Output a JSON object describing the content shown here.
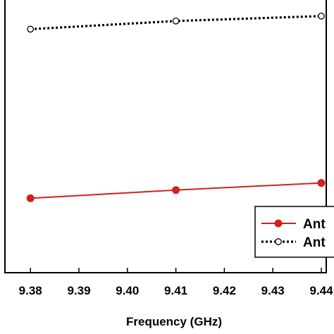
{
  "chart_data": {
    "type": "line",
    "xlabel": "Frequency (GHz)",
    "ylabel": "",
    "title": "",
    "x_ticks": [
      "9.38",
      "9.39",
      "9.40",
      "9.41",
      "9.42",
      "9.43",
      "9.44"
    ],
    "x_tick_values": [
      9.38,
      9.39,
      9.4,
      9.41,
      9.42,
      9.43,
      9.44
    ],
    "xlim": [
      9.3743,
      9.44
    ],
    "ylim": [
      0,
      1
    ],
    "grid": false,
    "legend_position": "bottom-right",
    "series": [
      {
        "name": "Ant",
        "color": "#d42020",
        "style": "solid",
        "marker": "filled-circle",
        "x": [
          9.38,
          9.41,
          9.44
        ],
        "y": [
          0.273,
          0.303,
          0.329
        ]
      },
      {
        "name": "Ant",
        "color": "#000000",
        "style": "dotted",
        "marker": "open-circle",
        "x": [
          9.38,
          9.41,
          9.44
        ],
        "y": [
          0.893,
          0.923,
          0.941
        ]
      }
    ]
  }
}
